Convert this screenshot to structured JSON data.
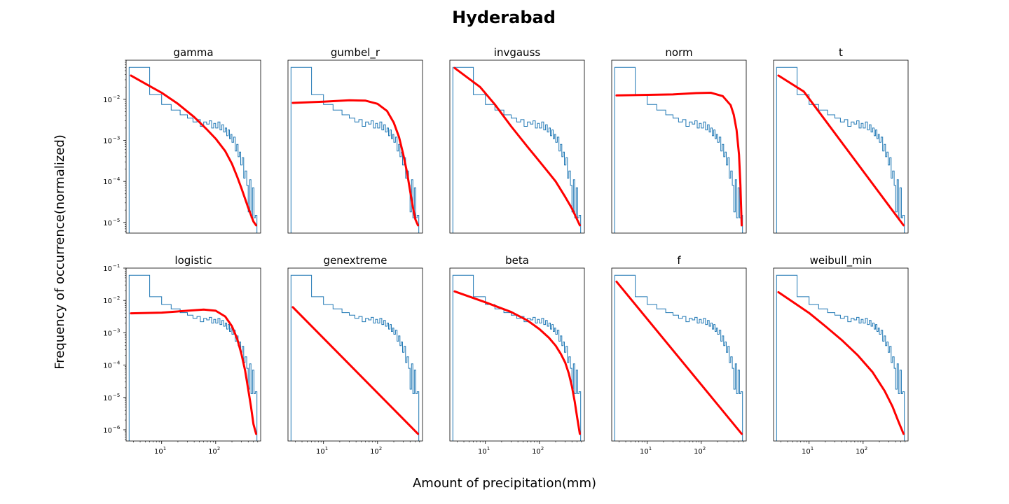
{
  "figure": {
    "title": "Hyderabad",
    "xlabel": "Amount of precipitation(mm)",
    "ylabel": "Frequency of occurrence(normalized)"
  },
  "chart_data": {
    "type": "line",
    "xscale": "log",
    "yscale": "log",
    "xlim": [
      2.2,
      680
    ],
    "x_ticks": [
      {
        "base": "10",
        "exp": "1",
        "value": 10
      },
      {
        "base": "10",
        "exp": "2",
        "value": 100
      }
    ],
    "y_ticks_row1": [
      {
        "base": "10",
        "exp": "−2",
        "value": 0.01
      },
      {
        "base": "10",
        "exp": "−3",
        "value": 0.001
      },
      {
        "base": "10",
        "exp": "−4",
        "value": 0.0001
      },
      {
        "base": "10",
        "exp": "−5",
        "value": 1e-05
      }
    ],
    "y_ticks_row2": [
      {
        "base": "10",
        "exp": "−1",
        "value": 0.1
      },
      {
        "base": "10",
        "exp": "−2",
        "value": 0.01
      },
      {
        "base": "10",
        "exp": "−3",
        "value": 0.001
      },
      {
        "base": "10",
        "exp": "−4",
        "value": 0.0001
      },
      {
        "base": "10",
        "exp": "−5",
        "value": 1e-05
      },
      {
        "base": "10",
        "exp": "−6",
        "value": 1e-06
      }
    ],
    "ylim_row1": [
      5.5e-06,
      0.09
    ],
    "ylim_row2": [
      4.5e-07,
      0.1
    ],
    "histogram": {
      "name": "empirical",
      "color": "#1f77b4",
      "bins": [
        [
          2.5,
          6,
          0.06
        ],
        [
          6,
          10,
          0.013
        ],
        [
          10,
          15,
          0.0075
        ],
        [
          15,
          22,
          0.0055
        ],
        [
          22,
          30,
          0.0042
        ],
        [
          30,
          38,
          0.0035
        ],
        [
          38,
          45,
          0.0028
        ],
        [
          45,
          52,
          0.0032
        ],
        [
          52,
          60,
          0.0022
        ],
        [
          60,
          68,
          0.0028
        ],
        [
          68,
          76,
          0.0025
        ],
        [
          76,
          84,
          0.003
        ],
        [
          84,
          92,
          0.002
        ],
        [
          92,
          100,
          0.0026
        ],
        [
          100,
          110,
          0.002
        ],
        [
          110,
          120,
          0.0028
        ],
        [
          120,
          130,
          0.0018
        ],
        [
          130,
          140,
          0.0024
        ],
        [
          140,
          150,
          0.0016
        ],
        [
          150,
          160,
          0.002
        ],
        [
          160,
          170,
          0.0013
        ],
        [
          170,
          180,
          0.0018
        ],
        [
          180,
          190,
          0.0011
        ],
        [
          190,
          200,
          0.0014
        ],
        [
          200,
          215,
          0.0009
        ],
        [
          215,
          230,
          0.0012
        ],
        [
          230,
          245,
          0.00055
        ],
        [
          245,
          260,
          0.0008
        ],
        [
          260,
          275,
          0.0004
        ],
        [
          275,
          290,
          0.00052
        ],
        [
          290,
          310,
          0.00025
        ],
        [
          310,
          330,
          0.00038
        ],
        [
          330,
          350,
          0.00012
        ],
        [
          350,
          375,
          0.00018
        ],
        [
          375,
          400,
          8e-05
        ],
        [
          400,
          425,
          1.8e-05
        ],
        [
          425,
          450,
          0.00011
        ],
        [
          450,
          480,
          1.3e-05
        ],
        [
          480,
          510,
          7e-05
        ],
        [
          510,
          540,
          1.3e-05
        ],
        [
          540,
          580,
          1.5e-05
        ]
      ]
    },
    "panels": [
      {
        "name": "gamma",
        "row": 1,
        "color": "#ff0000",
        "x": [
          2.7,
          5,
          10,
          20,
          40,
          70,
          100,
          150,
          200,
          250,
          300,
          400,
          500,
          560
        ],
        "y": [
          0.038,
          0.024,
          0.0145,
          0.0078,
          0.0037,
          0.0018,
          0.0011,
          0.00055,
          0.00027,
          0.00013,
          6.8e-05,
          2.3e-05,
          1.05e-05,
          8.5e-06
        ]
      },
      {
        "name": "gumbel_r",
        "row": 1,
        "color": "#ff0000",
        "x": [
          2.7,
          10,
          30,
          60,
          100,
          150,
          200,
          250,
          300,
          350,
          400,
          450,
          500,
          560
        ],
        "y": [
          0.0082,
          0.0088,
          0.0095,
          0.0093,
          0.0078,
          0.0052,
          0.0027,
          0.0012,
          0.00045,
          0.00017,
          6e-05,
          2.4e-05,
          1.2e-05,
          8.5e-06
        ]
      },
      {
        "name": "invgauss",
        "row": 1,
        "color": "#ff0000",
        "x": [
          2.7,
          8,
          15,
          30,
          60,
          100,
          150,
          200,
          300,
          400,
          560
        ],
        "y": [
          0.058,
          0.02,
          0.0075,
          0.0022,
          0.0007,
          0.00031,
          0.00016,
          0.0001,
          4.2e-05,
          2.2e-05,
          8.5e-06
        ]
      },
      {
        "name": "norm",
        "row": 1,
        "color": "#ff0000",
        "x": [
          2.7,
          30,
          80,
          150,
          250,
          350,
          400,
          450,
          500,
          530,
          560
        ],
        "y": [
          0.0125,
          0.0132,
          0.0142,
          0.0145,
          0.012,
          0.0072,
          0.0042,
          0.0018,
          0.00045,
          8e-05,
          8.5e-06
        ]
      },
      {
        "name": "t",
        "row": 1,
        "color": "#ff0000",
        "x": [
          2.7,
          8,
          560
        ],
        "y": [
          0.038,
          0.0155,
          8.5e-06
        ]
      },
      {
        "name": "logistic",
        "row": 2,
        "color": "#ff0000",
        "x": [
          2.7,
          10,
          30,
          60,
          100,
          150,
          200,
          250,
          300,
          350,
          400,
          450,
          500,
          560
        ],
        "y": [
          0.004,
          0.0042,
          0.0048,
          0.0052,
          0.0048,
          0.0032,
          0.0016,
          0.00065,
          0.00022,
          6.8e-05,
          1.8e-05,
          5.2e-06,
          1.5e-06,
          7.5e-07
        ]
      },
      {
        "name": "genextreme",
        "row": 2,
        "color": "#ff0000",
        "x": [
          2.7,
          560
        ],
        "y": [
          0.0062,
          7.5e-07
        ]
      },
      {
        "name": "beta",
        "row": 2,
        "color": "#ff0000",
        "x": [
          2.7,
          10,
          30,
          60,
          100,
          150,
          200,
          250,
          300,
          350,
          400,
          450,
          500,
          560
        ],
        "y": [
          0.019,
          0.0088,
          0.0044,
          0.0024,
          0.0013,
          0.0007,
          0.0004,
          0.00022,
          0.00012,
          5.5e-05,
          2.2e-05,
          7.5e-06,
          2.4e-06,
          7.5e-07
        ]
      },
      {
        "name": "f",
        "row": 2,
        "color": "#ff0000",
        "x": [
          2.7,
          560
        ],
        "y": [
          0.038,
          7.5e-07
        ]
      },
      {
        "name": "weibull_min",
        "row": 2,
        "color": "#ff0000",
        "x": [
          2.7,
          10,
          20,
          40,
          80,
          150,
          250,
          350,
          450,
          560
        ],
        "y": [
          0.018,
          0.0041,
          0.0016,
          0.0006,
          0.0002,
          6e-05,
          1.6e-05,
          5.2e-06,
          1.8e-06,
          7.5e-07
        ]
      }
    ]
  }
}
